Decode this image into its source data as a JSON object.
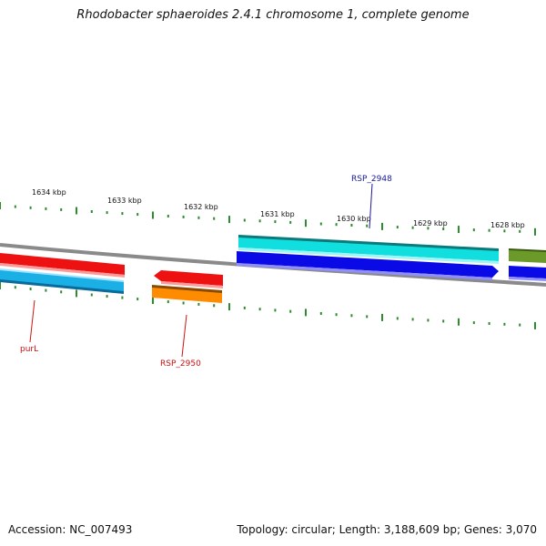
{
  "title": "Rhodobacter sphaeroides 2.4.1 chromosome 1, complete genome",
  "footer": {
    "accession": "Accession: NC_007493",
    "summary": "Topology: circular; Length: 3,188,609 bp; Genes: 3,070"
  },
  "scale_labels": [
    "1634 kbp",
    "1633 kbp",
    "1632 kbp",
    "1631 kbp",
    "1630 kbp",
    "1629 kbp",
    "1628 kbp"
  ],
  "gene_labels": [
    {
      "text": "RSP_2948",
      "color": "#1a1a9c"
    },
    {
      "text": "purL",
      "color": "#cc1111"
    },
    {
      "text": "RSP_2950",
      "color": "#cc1111"
    }
  ],
  "colors": {
    "backbone": "#8a8a8a",
    "ticks": "#2e8b2e",
    "red_gene": "#ee1111",
    "blue_gene": "#0a0ae6",
    "cyan_gene": "#11dede",
    "light_blue_gene": "#1ab0e6",
    "orange_gene": "#ff8c00",
    "olive_gene": "#6b9a2a"
  }
}
